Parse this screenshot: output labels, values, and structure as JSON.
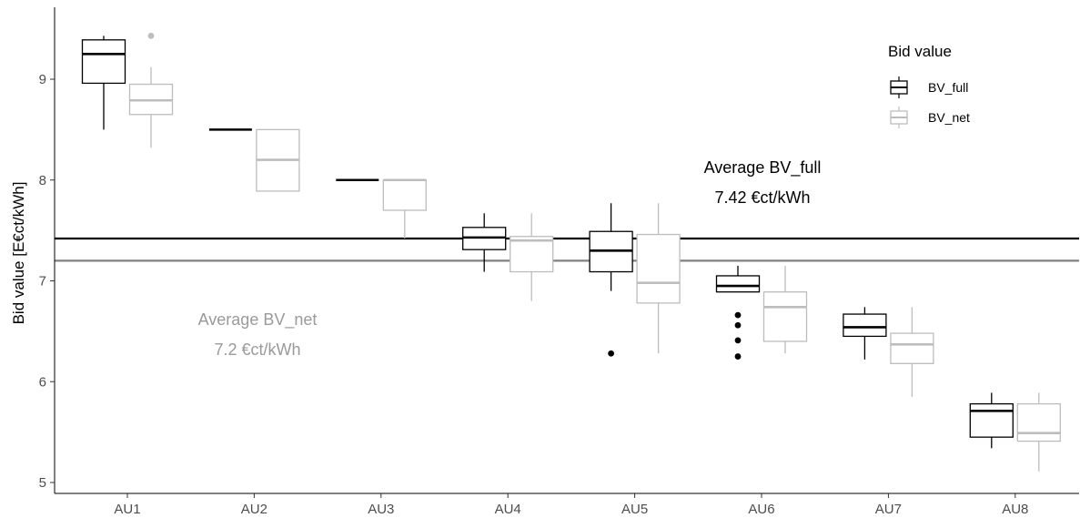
{
  "chart_data": {
    "type": "boxplot",
    "ylabel": "Bid value [E€ct/kWh]",
    "xlabel": "",
    "ylim": [
      4.9,
      9.7
    ],
    "yticks": [
      5,
      6,
      7,
      8,
      9
    ],
    "grid": false,
    "legend_position": "top-right",
    "legend": {
      "title": "Bid value",
      "entries": [
        {
          "label": "BV_full",
          "color": "#000000"
        },
        {
          "label": "BV_net",
          "color": "#bdbdbd"
        }
      ]
    },
    "categories": [
      "AU1",
      "AU2",
      "AU3",
      "AU4",
      "AU5",
      "AU6",
      "AU7",
      "AU8"
    ],
    "series": [
      {
        "name": "BV_full",
        "color": "#000000",
        "boxes": [
          {
            "min": 8.5,
            "q1": 8.96,
            "median": 9.25,
            "q3": 9.39,
            "max": 9.43,
            "outliers": []
          },
          {
            "min": 8.5,
            "q1": 8.5,
            "median": 8.5,
            "q3": 8.5,
            "max": 8.5,
            "outliers": []
          },
          {
            "min": 8.0,
            "q1": 8.0,
            "median": 8.0,
            "q3": 8.0,
            "max": 8.0,
            "outliers": []
          },
          {
            "min": 7.09,
            "q1": 7.31,
            "median": 7.43,
            "q3": 7.53,
            "max": 7.67,
            "outliers": []
          },
          {
            "min": 6.9,
            "q1": 7.09,
            "median": 7.3,
            "q3": 7.49,
            "max": 7.77,
            "outliers": [
              6.28
            ]
          },
          {
            "min": 6.89,
            "q1": 6.89,
            "median": 6.95,
            "q3": 7.05,
            "max": 7.15,
            "outliers": [
              6.25,
              6.41,
              6.56,
              6.66
            ]
          },
          {
            "min": 6.22,
            "q1": 6.45,
            "median": 6.54,
            "q3": 6.67,
            "max": 6.74,
            "outliers": []
          },
          {
            "min": 5.34,
            "q1": 5.45,
            "median": 5.71,
            "q3": 5.78,
            "max": 5.89,
            "outliers": []
          }
        ]
      },
      {
        "name": "BV_net",
        "color": "#bdbdbd",
        "boxes": [
          {
            "min": 8.32,
            "q1": 8.65,
            "median": 8.79,
            "q3": 8.95,
            "max": 9.12,
            "outliers": [
              9.43
            ]
          },
          {
            "min": 7.89,
            "q1": 7.89,
            "median": 8.2,
            "q3": 8.5,
            "max": 8.5,
            "outliers": []
          },
          {
            "min": 7.42,
            "q1": 7.7,
            "median": 8.0,
            "q3": 8.0,
            "max": 8.0,
            "outliers": []
          },
          {
            "min": 6.8,
            "q1": 7.09,
            "median": 7.4,
            "q3": 7.44,
            "max": 7.67,
            "outliers": []
          },
          {
            "min": 6.28,
            "q1": 6.78,
            "median": 6.98,
            "q3": 7.46,
            "max": 7.77,
            "outliers": []
          },
          {
            "min": 6.28,
            "q1": 6.4,
            "median": 6.74,
            "q3": 6.89,
            "max": 7.15,
            "outliers": []
          },
          {
            "min": 5.85,
            "q1": 6.18,
            "median": 6.37,
            "q3": 6.48,
            "max": 6.74,
            "outliers": []
          },
          {
            "min": 5.11,
            "q1": 5.41,
            "median": 5.49,
            "q3": 5.78,
            "max": 5.89,
            "outliers": []
          }
        ]
      }
    ],
    "reference_lines": [
      {
        "name": "Average BV_full",
        "value": 7.42,
        "color": "#000000"
      },
      {
        "name": "Average BV_net",
        "value": 7.2,
        "color": "#808080"
      }
    ],
    "annotations": [
      {
        "id": "full",
        "line1": "Average BV_full",
        "line2": "7.42 €ct/kWh",
        "color": "#000000"
      },
      {
        "id": "net",
        "line1": "Average BV_net",
        "line2": "7.2 €ct/kWh",
        "color": "#9a9a9a"
      }
    ]
  }
}
